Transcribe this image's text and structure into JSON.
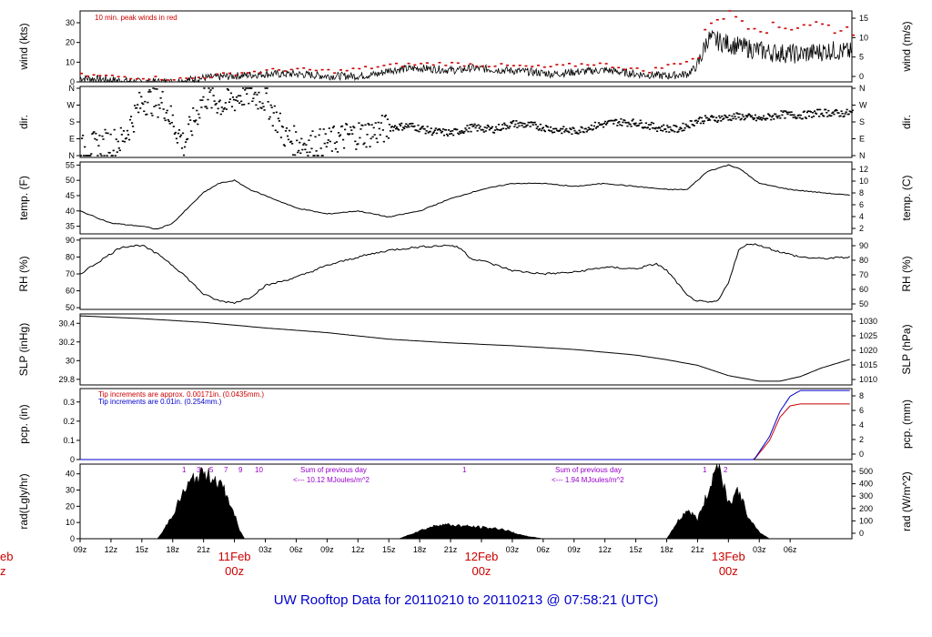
{
  "footer": {
    "title": "UW Rooftop Data for 20110210  to  20110213 @ 07:58:21  (UTC)"
  },
  "colors": {
    "axis": "#000000",
    "red": "#cc0000",
    "blue": "#0000cc",
    "purple": "#9900cc"
  },
  "chart_data": [
    {
      "id": "wind",
      "type": "line",
      "ylabel": "wind (kts)",
      "ylabel_right": "wind (m/s)",
      "ylim": [
        0,
        36
      ],
      "yticks": [
        0,
        10,
        20,
        30
      ],
      "right_ticks": [
        0,
        5,
        10,
        15
      ],
      "annotation": "10 min. peak winds in red",
      "series": [
        {
          "name": "wind speed",
          "color": "#000000",
          "x": [
            0,
            6,
            12,
            18,
            24,
            30,
            36,
            42,
            48,
            54,
            58,
            60,
            66,
            72,
            74,
            76,
            82,
            88,
            92,
            96,
            102,
            108,
            114,
            118,
            120,
            122,
            128,
            134,
            140,
            146,
            150
          ],
          "y": [
            2,
            1,
            0,
            0,
            2,
            3,
            4,
            4,
            3,
            3,
            4,
            6,
            7,
            6,
            6,
            7,
            6,
            5,
            4,
            5,
            6,
            4,
            3,
            4,
            8,
            22,
            18,
            15,
            14,
            16,
            15
          ]
        },
        {
          "name": "10 min. peak winds",
          "color": "#cc0000",
          "x": [
            0,
            10,
            20,
            30,
            40,
            50,
            60,
            70,
            80,
            90,
            100,
            110,
            120,
            122,
            126,
            130,
            134,
            138,
            142,
            146,
            150
          ],
          "y": [
            3,
            2,
            1,
            4,
            6,
            5,
            8,
            9,
            8,
            7,
            9,
            5,
            12,
            30,
            34,
            28,
            26,
            27,
            29,
            26,
            25
          ]
        }
      ]
    },
    {
      "id": "dir",
      "type": "scatter",
      "ylabel": "dir.",
      "ylabel_right": "dir.",
      "yticks": [
        "N",
        "E",
        "S",
        "W",
        "N"
      ],
      "ylim": [
        0,
        360
      ],
      "series": [
        {
          "name": "wind direction",
          "x": [
            0,
            4,
            8,
            12,
            16,
            20,
            24,
            28,
            32,
            36,
            40,
            44,
            48,
            52,
            56,
            60,
            64,
            68,
            72,
            76,
            80,
            84,
            88,
            92,
            96,
            100,
            104,
            108,
            112,
            116,
            120,
            124,
            128,
            132,
            136,
            140,
            144,
            148,
            150
          ],
          "y": [
            30,
            60,
            80,
            300,
            280,
            60,
            320,
            270,
            340,
            300,
            90,
            60,
            70,
            110,
            120,
            150,
            160,
            130,
            120,
            150,
            140,
            170,
            160,
            140,
            130,
            160,
            180,
            175,
            150,
            140,
            190,
            200,
            210,
            195,
            220,
            215,
            230,
            225,
            230
          ]
        }
      ]
    },
    {
      "id": "temp",
      "type": "line",
      "ylabel": "temp. (F)",
      "ylabel_right": "temp. (C)",
      "ylim": [
        32.5,
        56
      ],
      "yticks": [
        35,
        40,
        45,
        50,
        55
      ],
      "right_ticks": [
        2,
        4,
        6,
        8,
        10,
        12
      ],
      "series": [
        {
          "name": "temperature",
          "x": [
            0,
            6,
            12,
            15,
            18,
            21,
            24,
            27,
            30,
            33,
            36,
            42,
            48,
            54,
            60,
            66,
            72,
            78,
            84,
            90,
            96,
            102,
            108,
            114,
            118,
            120,
            122,
            124,
            126,
            128,
            132,
            138,
            144,
            150
          ],
          "y": [
            40,
            36,
            35,
            34,
            36,
            41,
            46,
            49,
            50,
            47,
            45,
            41,
            39,
            40,
            38,
            40,
            44,
            47,
            49,
            49,
            48,
            49,
            48,
            47,
            47,
            50,
            53,
            54,
            55,
            54,
            49,
            47,
            46,
            45
          ]
        }
      ]
    },
    {
      "id": "rh",
      "type": "line",
      "ylabel": "RH (%)",
      "ylabel_right": "RH (%)",
      "ylim": [
        49,
        91
      ],
      "yticks": [
        50,
        60,
        70,
        80,
        90
      ],
      "right_ticks": [
        50,
        60,
        70,
        80,
        90
      ],
      "series": [
        {
          "name": "relative humidity",
          "x": [
            0,
            4,
            8,
            12,
            16,
            20,
            24,
            27,
            30,
            33,
            36,
            42,
            48,
            54,
            60,
            66,
            72,
            74,
            76,
            78,
            84,
            90,
            96,
            102,
            108,
            112,
            114,
            116,
            118,
            120,
            122,
            124,
            126,
            128,
            130,
            132,
            136,
            140,
            144,
            150
          ],
          "y": [
            70,
            78,
            86,
            87,
            80,
            70,
            58,
            54,
            53,
            56,
            63,
            68,
            75,
            80,
            84,
            86,
            87,
            85,
            79,
            78,
            72,
            70,
            71,
            74,
            73,
            76,
            72,
            65,
            57,
            54,
            53,
            54,
            65,
            84,
            88,
            87,
            83,
            80,
            79,
            80
          ]
        }
      ]
    },
    {
      "id": "slp",
      "type": "line",
      "ylabel": "SLP (inHg)",
      "ylabel_right": "SLP (hPa)",
      "ylim": [
        29.74,
        30.5
      ],
      "yticks": [
        29.8,
        30.0,
        30.2,
        30.4
      ],
      "right_ticks": [
        1010,
        1015,
        1020,
        1025,
        1030
      ],
      "series": [
        {
          "name": "sea level pressure",
          "x": [
            0,
            12,
            24,
            36,
            48,
            60,
            72,
            84,
            96,
            108,
            114,
            120,
            126,
            132,
            136,
            140,
            144,
            150
          ],
          "y": [
            30.48,
            30.45,
            30.41,
            30.35,
            30.3,
            30.23,
            30.19,
            30.16,
            30.12,
            30.06,
            30.01,
            29.95,
            29.84,
            29.78,
            29.78,
            29.83,
            29.92,
            30.02
          ]
        }
      ]
    },
    {
      "id": "pcp",
      "type": "line",
      "ylabel": "pcp. (in)",
      "ylabel_right": "pcp. (mm)",
      "ylim": [
        0,
        0.37
      ],
      "yticks": [
        0,
        0.1,
        0.2,
        0.3
      ],
      "right_ticks": [
        0,
        2,
        4,
        6,
        8
      ],
      "annotations": [
        "Tip increments are approx. 0.00171in. (0.0435mm.)",
        "Tip increments are 0.01in. (0.254mm.)"
      ],
      "series": [
        {
          "name": "pcp approx increments",
          "color": "#cc0000",
          "x": [
            0,
            131,
            134,
            136,
            138,
            140,
            150
          ],
          "y": [
            0,
            0,
            0.1,
            0.22,
            0.28,
            0.29,
            0.29
          ]
        },
        {
          "name": "pcp 0.01in increments",
          "color": "#0000cc",
          "x": [
            0,
            131,
            134,
            136,
            138,
            140,
            150
          ],
          "y": [
            0,
            0,
            0.12,
            0.25,
            0.33,
            0.36,
            0.36
          ]
        }
      ]
    },
    {
      "id": "rad",
      "type": "area",
      "ylabel": "rad(Lgly/hr)",
      "ylabel_right": "rad (W/m^2)",
      "ylim": [
        0,
        46
      ],
      "yticks": [
        0,
        10,
        20,
        30,
        40
      ],
      "right_ticks": [
        0,
        100,
        200,
        300,
        400,
        500
      ],
      "tick_labels_top": [
        "1",
        "3",
        "5",
        "7",
        "9",
        "10",
        "1",
        "1",
        "2"
      ],
      "annotations": [
        "Sum of previous day",
        "<--- 10.12 MJoules/m^2",
        "Sum of previous day",
        "<--- 1.94 MJoules/m^2"
      ],
      "series": [
        {
          "name": "solar radiation",
          "x": [
            0,
            15,
            16,
            18,
            20,
            22,
            24,
            26,
            28,
            30,
            31,
            32,
            54,
            62,
            66,
            70,
            74,
            78,
            82,
            86,
            90,
            114,
            116,
            118,
            120,
            122,
            124,
            126,
            128,
            130,
            132,
            134,
            150
          ],
          "y": [
            0,
            0,
            4,
            15,
            28,
            37,
            40,
            38,
            30,
            15,
            5,
            0,
            0,
            0,
            5,
            9,
            8,
            7,
            6,
            2,
            0,
            0,
            10,
            18,
            12,
            28,
            48,
            22,
            30,
            12,
            4,
            0,
            0
          ]
        }
      ]
    }
  ],
  "x_axis": {
    "ticks": [
      {
        "h": 0,
        "label": "09z"
      },
      {
        "h": 6,
        "label": "12z"
      },
      {
        "h": 12,
        "label": "15z"
      },
      {
        "h": 18,
        "label": "18z"
      },
      {
        "h": 24,
        "label": "21z"
      },
      {
        "h": 36,
        "label": "03z"
      },
      {
        "h": 42,
        "label": "06z"
      },
      {
        "h": 48,
        "label": "09z"
      },
      {
        "h": 54,
        "label": "12z"
      },
      {
        "h": 60,
        "label": "15z"
      },
      {
        "h": 66,
        "label": "18z"
      },
      {
        "h": 72,
        "label": "21z"
      },
      {
        "h": 84,
        "label": "03z"
      },
      {
        "h": 90,
        "label": "06z"
      },
      {
        "h": 96,
        "label": "09z"
      },
      {
        "h": 102,
        "label": "12z"
      },
      {
        "h": 108,
        "label": "15z"
      },
      {
        "h": 114,
        "label": "18z"
      },
      {
        "h": 120,
        "label": "21z"
      },
      {
        "h": 132,
        "label": "03z"
      },
      {
        "h": 138,
        "label": "06z"
      }
    ],
    "day_labels": [
      {
        "h": 30,
        "date": "11Feb",
        "time": "00z"
      },
      {
        "h": 78,
        "date": "12Feb",
        "time": "00z"
      },
      {
        "h": 126,
        "date": "13Feb",
        "time": "00z"
      }
    ],
    "clipped_label": {
      "date": "eb",
      "time": "z"
    }
  }
}
